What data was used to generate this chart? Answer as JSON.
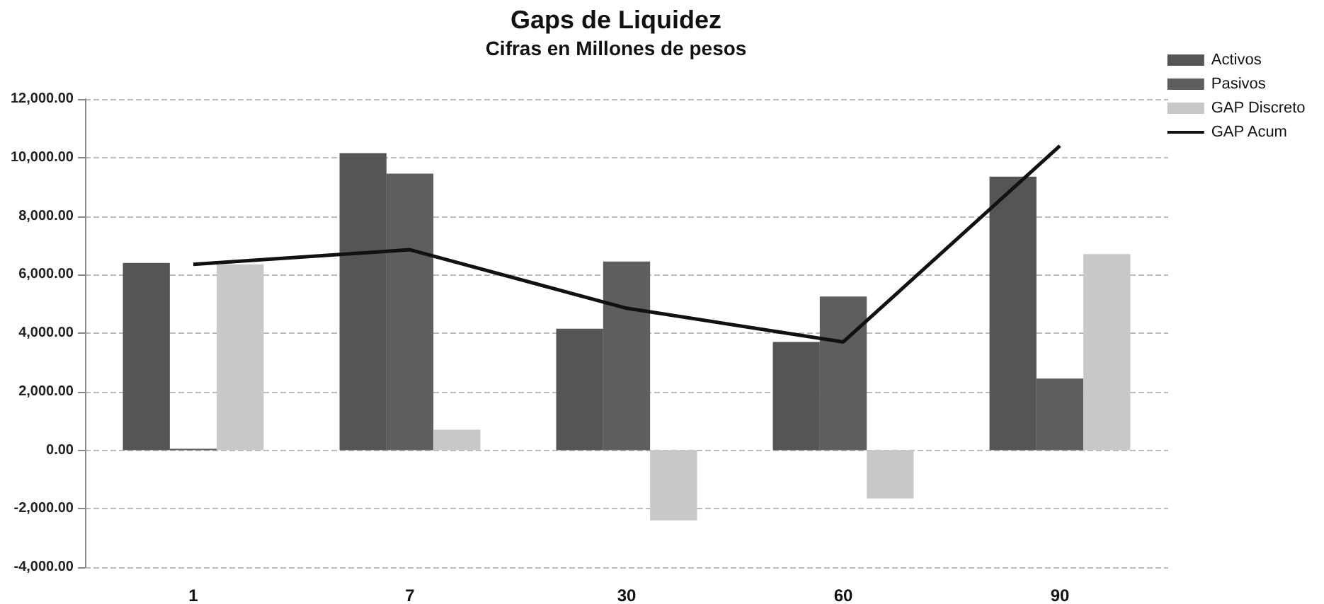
{
  "chart_data": {
    "type": "bar",
    "title": "Gaps de Liquidez",
    "subtitle": "Cifras en Millones de pesos",
    "categories": [
      "1",
      "7",
      "30",
      "60",
      "90"
    ],
    "series": [
      {
        "name": "Activos",
        "color": "#555555",
        "values": [
          6400,
          10150,
          4150,
          3700,
          9350
        ]
      },
      {
        "name": "Pasivos",
        "color": "#5e5e5e",
        "values": [
          50,
          9450,
          6450,
          5250,
          2450
        ]
      },
      {
        "name": "GAP Discreto",
        "color": "#c8c8c8",
        "values": [
          6350,
          700,
          -2400,
          -1650,
          6700
        ]
      },
      {
        "name": "GAP Acum",
        "type": "line",
        "color": "#111111",
        "values": [
          6350,
          6850,
          4850,
          3700,
          10400
        ]
      }
    ],
    "ylim": [
      -4000,
      12000
    ],
    "yticks": [
      {
        "value": -4000,
        "label": "-4,000.00"
      },
      {
        "value": -2000,
        "label": "-2,000.00"
      },
      {
        "value": 0,
        "label": "0.00"
      },
      {
        "value": 2000,
        "label": "2,000.00"
      },
      {
        "value": 4000,
        "label": "4,000.00"
      },
      {
        "value": 6000,
        "label": "6,000.00"
      },
      {
        "value": 8000,
        "label": "8,000.00"
      },
      {
        "value": 10000,
        "label": "10,000.00"
      },
      {
        "value": 12000,
        "label": "12,000.00"
      }
    ],
    "grid": "y",
    "legend": "top right",
    "marker": "none",
    "line_style": "solid"
  }
}
